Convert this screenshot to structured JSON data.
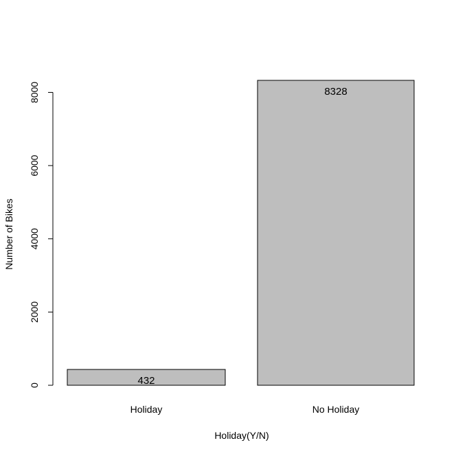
{
  "chart_data": {
    "type": "bar",
    "title": "",
    "xlabel": "Holiday(Y/N)",
    "ylabel": "Number of Bikes",
    "categories": [
      "Holiday",
      "No Holiday"
    ],
    "values": [
      432,
      8328
    ],
    "data_labels": [
      "432",
      "8328"
    ],
    "ylim": [
      0,
      8328
    ],
    "yticks": [
      0,
      2000,
      4000,
      6000,
      8000
    ],
    "ytick_labels": [
      "0",
      "2000",
      "4000",
      "6000",
      "8000"
    ],
    "bar_color": "#bebebe",
    "bar_border_color": "#000000",
    "grid": false,
    "legend": "none"
  }
}
